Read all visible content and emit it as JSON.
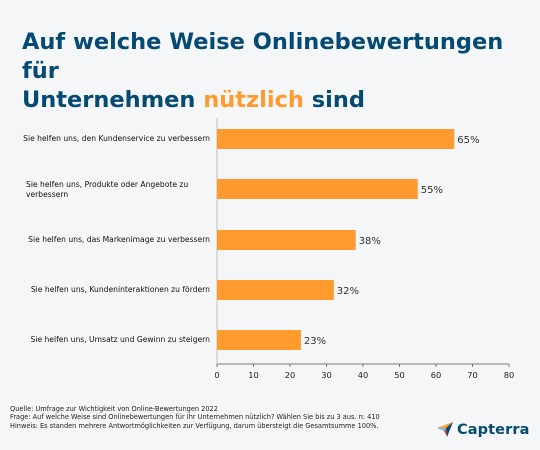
{
  "title": {
    "part1": "Auf welche Weise Onlinebewertungen für",
    "part2": "Unternehmen",
    "highlight": "nützlich",
    "part3": "sind"
  },
  "chart_data": {
    "type": "bar",
    "orientation": "horizontal",
    "categories": [
      "Sie helfen uns, den Kundenservice zu verbessern",
      "Sie helfen uns, Produkte oder Angebote zu verbessern",
      "Sie helfen uns, das Markenimage zu verbessern",
      "Sie helfen uns, Kundeninteraktionen zu fördern",
      "Sie helfen uns, Umsatz und Gewinn zu steigern"
    ],
    "values": [
      65,
      55,
      38,
      32,
      23
    ],
    "value_labels": [
      "65%",
      "55%",
      "38%",
      "32%",
      "23%"
    ],
    "xlim": [
      0,
      80
    ],
    "xticks": [
      0,
      10,
      20,
      30,
      40,
      50,
      60,
      70,
      80
    ],
    "grid": false,
    "bar_color": "#ff9a2e"
  },
  "footer": {
    "source": "Quelle: Umfrage zur Wichtigkeit von Online-Bewertungen 2022",
    "question": "Frage: Auf welche Weise sind Onlinebewertungen für Ihr Unternehmen nützlich? Wählen Sie bis zu 3 aus. n: 410",
    "note": "Hinweis: Es standen mehrere Antwortmöglichkeiten zur Verfügung, darum übersteigt die Gesamtsumme 100%."
  },
  "logo": {
    "text": "Capterra",
    "icon": "capterra-arrow-icon"
  },
  "colors": {
    "title": "#044a72",
    "accent": "#ff9a2e",
    "background": "#f4f6f8"
  }
}
